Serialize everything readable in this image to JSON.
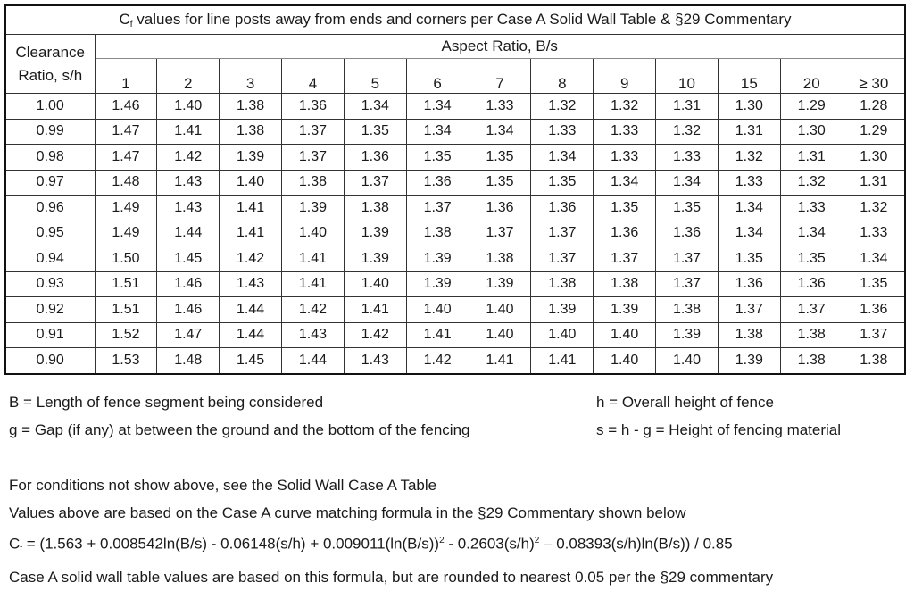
{
  "table": {
    "title_prefix": "C",
    "title_sub": "f",
    "title_rest": " values for line posts away from ends and corners per Case A Solid Wall Table & §29 Commentary",
    "row_header_line1": "Clearance",
    "row_header_line2": "Ratio, s/h",
    "column_group_header": "Aspect Ratio, B/s",
    "columns": [
      "1",
      "2",
      "3",
      "4",
      "5",
      "6",
      "7",
      "8",
      "9",
      "10",
      "15",
      "20",
      "≥ 30"
    ],
    "rows": [
      {
        "sh": "1.00",
        "values": [
          "1.46",
          "1.40",
          "1.38",
          "1.36",
          "1.34",
          "1.34",
          "1.33",
          "1.32",
          "1.32",
          "1.31",
          "1.30",
          "1.29",
          "1.28"
        ]
      },
      {
        "sh": "0.99",
        "values": [
          "1.47",
          "1.41",
          "1.38",
          "1.37",
          "1.35",
          "1.34",
          "1.34",
          "1.33",
          "1.33",
          "1.32",
          "1.31",
          "1.30",
          "1.29"
        ]
      },
      {
        "sh": "0.98",
        "values": [
          "1.47",
          "1.42",
          "1.39",
          "1.37",
          "1.36",
          "1.35",
          "1.35",
          "1.34",
          "1.33",
          "1.33",
          "1.32",
          "1.31",
          "1.30"
        ]
      },
      {
        "sh": "0.97",
        "values": [
          "1.48",
          "1.43",
          "1.40",
          "1.38",
          "1.37",
          "1.36",
          "1.35",
          "1.35",
          "1.34",
          "1.34",
          "1.33",
          "1.32",
          "1.31"
        ]
      },
      {
        "sh": "0.96",
        "values": [
          "1.49",
          "1.43",
          "1.41",
          "1.39",
          "1.38",
          "1.37",
          "1.36",
          "1.36",
          "1.35",
          "1.35",
          "1.34",
          "1.33",
          "1.32"
        ]
      },
      {
        "sh": "0.95",
        "values": [
          "1.49",
          "1.44",
          "1.41",
          "1.40",
          "1.39",
          "1.38",
          "1.37",
          "1.37",
          "1.36",
          "1.36",
          "1.34",
          "1.34",
          "1.33"
        ]
      },
      {
        "sh": "0.94",
        "values": [
          "1.50",
          "1.45",
          "1.42",
          "1.41",
          "1.39",
          "1.39",
          "1.38",
          "1.37",
          "1.37",
          "1.37",
          "1.35",
          "1.35",
          "1.34"
        ]
      },
      {
        "sh": "0.93",
        "values": [
          "1.51",
          "1.46",
          "1.43",
          "1.41",
          "1.40",
          "1.39",
          "1.39",
          "1.38",
          "1.38",
          "1.37",
          "1.36",
          "1.36",
          "1.35"
        ]
      },
      {
        "sh": "0.92",
        "values": [
          "1.51",
          "1.46",
          "1.44",
          "1.42",
          "1.41",
          "1.40",
          "1.40",
          "1.39",
          "1.39",
          "1.38",
          "1.37",
          "1.37",
          "1.36"
        ]
      },
      {
        "sh": "0.91",
        "values": [
          "1.52",
          "1.47",
          "1.44",
          "1.43",
          "1.42",
          "1.41",
          "1.40",
          "1.40",
          "1.40",
          "1.39",
          "1.38",
          "1.38",
          "1.37"
        ]
      },
      {
        "sh": "0.90",
        "values": [
          "1.53",
          "1.48",
          "1.45",
          "1.44",
          "1.43",
          "1.42",
          "1.41",
          "1.41",
          "1.40",
          "1.40",
          "1.39",
          "1.38",
          "1.38"
        ]
      }
    ]
  },
  "definitions": {
    "B": "B = Length of fence segment being considered",
    "g": "g = Gap (if any) at between the ground and the bottom of the fencing",
    "h": "h = Overall height of fence",
    "s": "s = h - g = Height of fencing material"
  },
  "notes": {
    "line1": "For conditions not show above, see the Solid Wall Case A Table",
    "line2": "Values above are based on the Case A curve matching formula in the §29 Commentary shown below",
    "formula": {
      "prefix": "C",
      "sub": "f",
      "part1": " = (1.563 + 0.008542ln(B/s) - 0.06148(s/h) + 0.009011(ln(B/s))",
      "sup1": "2",
      "part2": " - 0.2603(s/h)",
      "sup2": "2",
      "part3": " – 0.08393(s/h)ln(B/s)) / 0.85"
    },
    "line4": "Case A solid wall table values are based on this formula, but are rounded to nearest 0.05 per the §29 commentary"
  }
}
